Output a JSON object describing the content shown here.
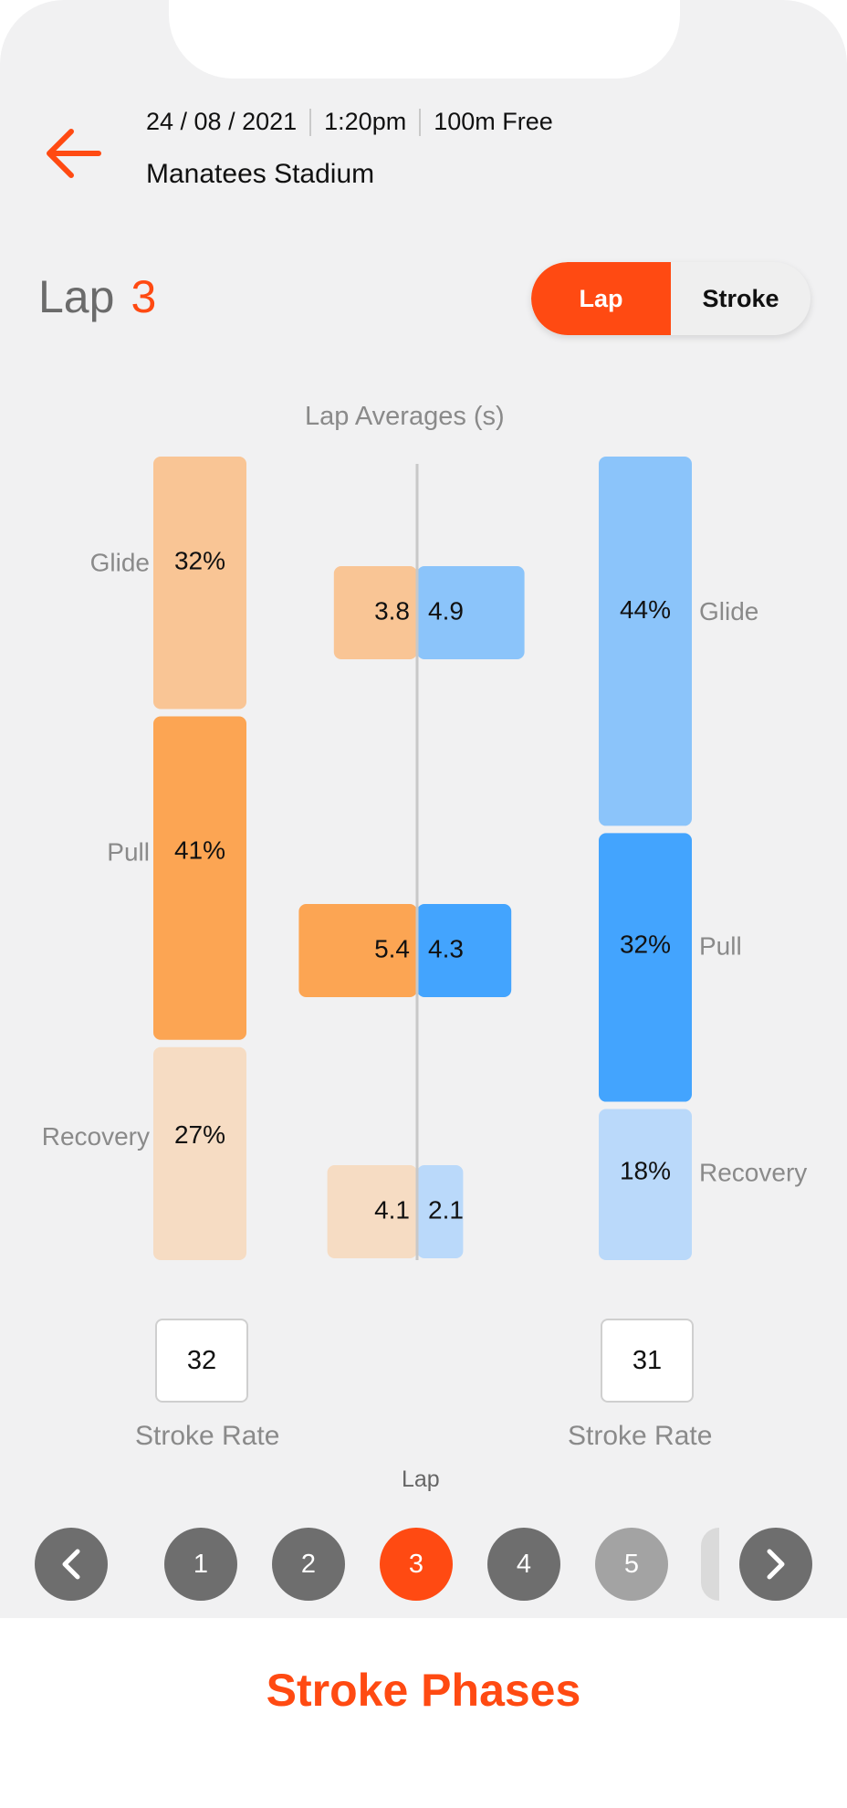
{
  "header": {
    "date": "24 / 08 / 2021",
    "time": "1:20pm",
    "event": "100m Free",
    "venue": "Manatees Stadium"
  },
  "lap": {
    "label": "Lap",
    "number": "3"
  },
  "toggle": {
    "lap_label": "Lap",
    "stroke_label": "Stroke",
    "selected": "Lap"
  },
  "chart_data": {
    "type": "bar",
    "title": "Lap Averages (s)",
    "phases": [
      "Glide",
      "Pull",
      "Recovery"
    ],
    "left": {
      "percent_labels": [
        "32%",
        "41%",
        "27%"
      ],
      "percents": [
        32,
        41,
        27
      ],
      "seconds": [
        3.8,
        5.4,
        4.1
      ],
      "colors": [
        "#f9c595",
        "#fca553",
        "#f6dcc3"
      ],
      "stroke_rate": 32
    },
    "right": {
      "percent_labels": [
        "44%",
        "32%",
        "18%"
      ],
      "percents": [
        44,
        32,
        18
      ],
      "seconds": [
        4.9,
        4.3,
        2.1
      ],
      "colors": [
        "#8bc4fa",
        "#43a4fe",
        "#bad9fa"
      ],
      "stroke_rate": 31
    },
    "stroke_rate_label": "Stroke Rate"
  },
  "pager": {
    "caption": "Lap",
    "items": [
      "1",
      "2",
      "3",
      "4",
      "5"
    ],
    "selected": "3",
    "colors": {
      "active": "#ff4a12",
      "default": "#6e6e6e",
      "muted": "#a3a3a3",
      "nav": "#6e6e6e"
    }
  },
  "footer": {
    "title": "Stroke Phases"
  },
  "theme": {
    "accent": "#ff4a12"
  }
}
